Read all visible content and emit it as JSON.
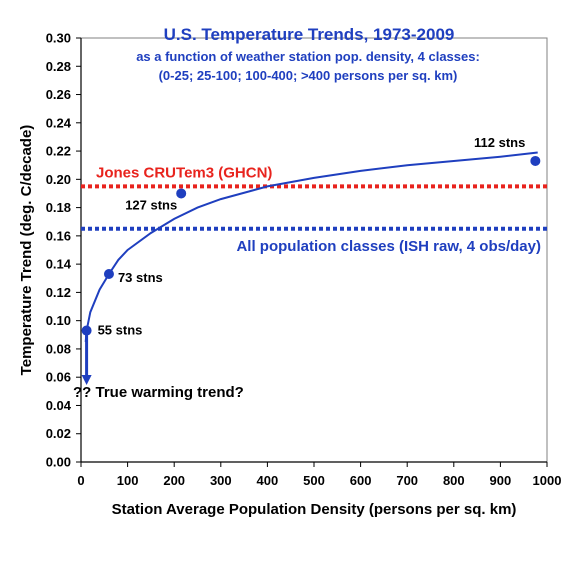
{
  "chart_data": {
    "type": "scatter",
    "title": "U.S. Temperature Trends, 1973-2009",
    "subtitle_lines": [
      "as a function of weather station pop. density, 4 classes:",
      "(0-25; 25-100; 100-400; >400 persons per sq. km)"
    ],
    "xlabel": "Station Average Population Density (persons per sq. km)",
    "ylabel": "Temperature Trend (deg. C/decade)",
    "xlim": [
      0,
      1000
    ],
    "ylim": [
      0,
      0.3
    ],
    "x_ticks": [
      0,
      100,
      200,
      300,
      400,
      500,
      600,
      700,
      800,
      900,
      1000
    ],
    "y_ticks": [
      "0.00",
      "0.02",
      "0.04",
      "0.06",
      "0.08",
      "0.10",
      "0.12",
      "0.14",
      "0.16",
      "0.18",
      "0.20",
      "0.22",
      "0.24",
      "0.26",
      "0.28",
      "0.30"
    ],
    "grid": false,
    "points": [
      {
        "x": 12,
        "y": 0.093,
        "label": "55 stns"
      },
      {
        "x": 60,
        "y": 0.133,
        "label": "73 stns"
      },
      {
        "x": 215,
        "y": 0.19,
        "label": "127 stns"
      },
      {
        "x": 975,
        "y": 0.213,
        "label": "112 stns"
      }
    ],
    "fit_curve": {
      "type": "logarithmic",
      "color": "#1f3fbf",
      "points": [
        [
          10,
          0.085
        ],
        [
          12,
          0.093
        ],
        [
          20,
          0.106
        ],
        [
          40,
          0.122
        ],
        [
          60,
          0.133
        ],
        [
          80,
          0.143
        ],
        [
          100,
          0.15
        ],
        [
          150,
          0.162
        ],
        [
          200,
          0.172
        ],
        [
          250,
          0.18
        ],
        [
          300,
          0.186
        ],
        [
          400,
          0.195
        ],
        [
          500,
          0.201
        ],
        [
          600,
          0.206
        ],
        [
          700,
          0.21
        ],
        [
          800,
          0.213
        ],
        [
          900,
          0.216
        ],
        [
          980,
          0.219
        ]
      ]
    },
    "reference_lines": [
      {
        "name": "Jones CRUTem3 (GHCN)",
        "y": 0.195,
        "color": "#e8231d",
        "style": "dotted"
      },
      {
        "name": "All population classes (ISH raw, 4 obs/day)",
        "y": 0.165,
        "color": "#1f3fbf",
        "style": "dotted"
      }
    ],
    "annotation": {
      "text": "?? True warming trend?",
      "arrow_from": [
        12,
        0.093
      ],
      "arrow_to": [
        12,
        0.058
      ]
    },
    "colors": {
      "series": "#1f3fbf",
      "reference_red": "#e8231d",
      "reference_blue": "#1f3fbf"
    }
  }
}
